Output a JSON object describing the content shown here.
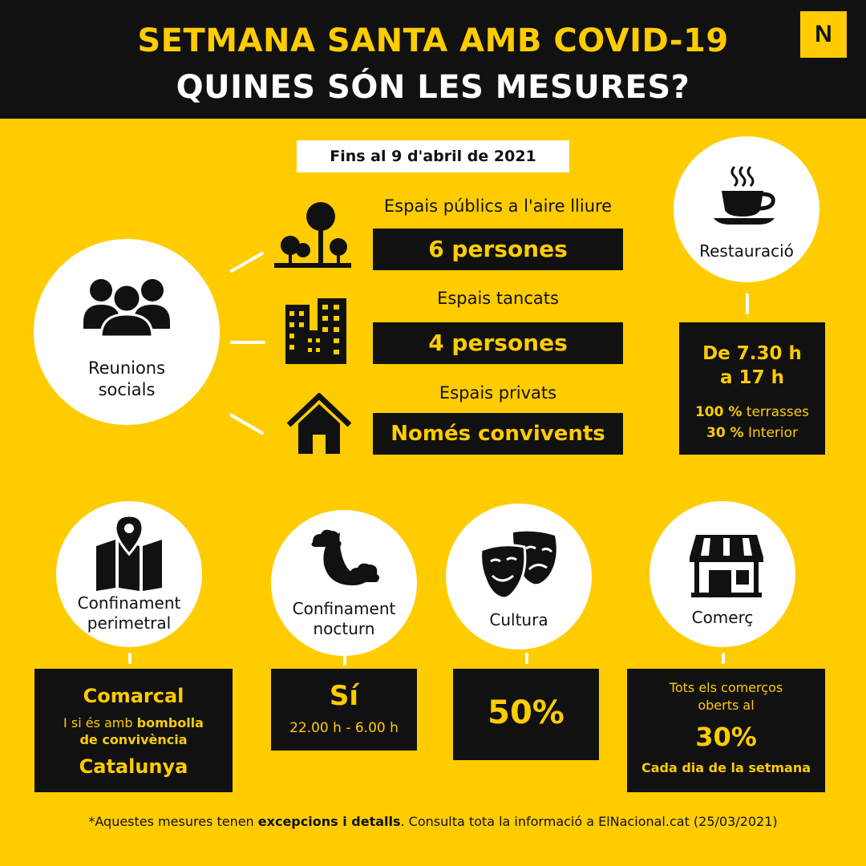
{
  "header": {
    "title_line1": "SETMANA SANTA AMB COVID-19",
    "title_line2": "QUINES SÓN LES MESURES?",
    "logo": "N"
  },
  "date_label": "Fins al 9 d'abril de 2021",
  "reunions": {
    "label_line1": "Reunions",
    "label_line2": "socials",
    "icon": "group-icon",
    "spaces": [
      {
        "label": "Espais públics a l'aire lliure",
        "value": "6 persones",
        "icon": "trees-icon"
      },
      {
        "label": "Espais tancats",
        "value": "4 persones",
        "icon": "buildings-icon"
      },
      {
        "label": "Espais privats",
        "value": "Només convivents",
        "icon": "house-icon"
      }
    ]
  },
  "restauracio": {
    "label": "Restauració",
    "icon": "coffee-cup-icon",
    "hours_line1": "De 7.30 h",
    "hours_line2": "a 17 h",
    "terraces_pct": "100 %",
    "terraces_label": "terrasses",
    "interior_pct": "30 %",
    "interior_label": "Interior"
  },
  "confinament_perimetral": {
    "label_line1": "Confinament",
    "label_line2": "perimetral",
    "icon": "map-pin-icon",
    "main": "Comarcal",
    "sub_prefix": "I si és amb",
    "sub_bold1": "bombolla",
    "sub_bold2": "de convivència",
    "bottom": "Catalunya"
  },
  "confinament_nocturn": {
    "label_line1": "Confinament",
    "label_line2": "nocturn",
    "icon": "moon-clouds-icon",
    "main": "Sí",
    "hours": "22.00 h - 6.00 h"
  },
  "cultura": {
    "label": "Cultura",
    "icon": "theater-masks-icon",
    "value": "50%"
  },
  "comerc": {
    "label": "Comerç",
    "icon": "shop-icon",
    "line1": "Tots els comerços",
    "line2": "oberts al",
    "value": "30%",
    "bottom": "Cada dia de la setmana"
  },
  "footnote": {
    "prefix": "*Aquestes mesures tenen",
    "bold": "excepcions i detalls",
    "suffix": ". Consulta tota la informació a ElNacional.cat (25/03/2021)"
  },
  "colors": {
    "background": "#FFCC00",
    "dark": "#111111",
    "white": "#FFFFFF"
  }
}
